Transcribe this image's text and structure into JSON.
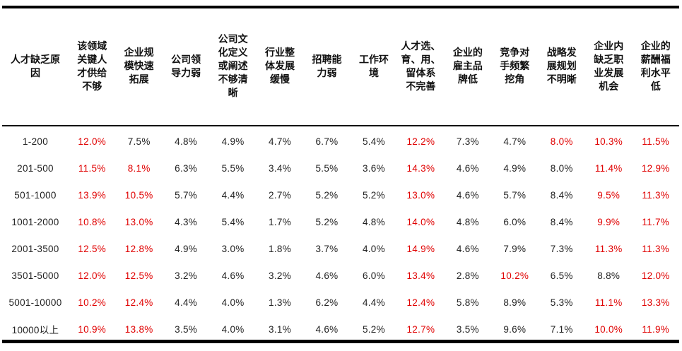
{
  "chart_data": {
    "type": "table",
    "highlight_color": "#e00000",
    "columns": [
      "人才缺乏原\n因",
      "该领域\n关键人\n才供给\n不够",
      "企业规\n模快速\n拓展",
      "公司领\n导力弱",
      "公司文\n化定义\n或阐述\n不够清\n晰",
      "行业整\n体发展\n缓慢",
      "招聘能\n力弱",
      "工作环\n境",
      "人才选、\n育、用、\n留体系\n不完善",
      "企业的\n雇主品\n牌低",
      "竞争对\n手频繁\n挖角",
      "战略发\n展规划\n不明晰",
      "企业内\n缺乏职\n业发展\n机会",
      "企业的\n薪酬福\n利水平\n低"
    ],
    "rows": [
      {
        "label": "1-200",
        "cells": [
          {
            "v": "12.0%",
            "hl": true
          },
          {
            "v": "7.5%"
          },
          {
            "v": "4.8%"
          },
          {
            "v": "4.9%"
          },
          {
            "v": "4.7%"
          },
          {
            "v": "6.7%"
          },
          {
            "v": "5.4%"
          },
          {
            "v": "12.2%",
            "hl": true
          },
          {
            "v": "7.3%"
          },
          {
            "v": "4.7%"
          },
          {
            "v": "8.0%",
            "hl": true
          },
          {
            "v": "10.3%",
            "hl": true
          },
          {
            "v": "11.5%",
            "hl": true
          }
        ]
      },
      {
        "label": "201-500",
        "cells": [
          {
            "v": "11.5%",
            "hl": true
          },
          {
            "v": "8.1%",
            "hl": true
          },
          {
            "v": "6.3%"
          },
          {
            "v": "5.5%"
          },
          {
            "v": "3.4%"
          },
          {
            "v": "5.5%"
          },
          {
            "v": "3.6%"
          },
          {
            "v": "14.3%",
            "hl": true
          },
          {
            "v": "4.6%"
          },
          {
            "v": "4.9%"
          },
          {
            "v": "8.0%"
          },
          {
            "v": "11.4%",
            "hl": true
          },
          {
            "v": "12.9%",
            "hl": true
          }
        ]
      },
      {
        "label": "501-1000",
        "cells": [
          {
            "v": "13.9%",
            "hl": true
          },
          {
            "v": "10.5%",
            "hl": true
          },
          {
            "v": "5.7%"
          },
          {
            "v": "4.4%"
          },
          {
            "v": "2.7%"
          },
          {
            "v": "5.2%"
          },
          {
            "v": "5.2%"
          },
          {
            "v": "13.0%",
            "hl": true
          },
          {
            "v": "4.6%"
          },
          {
            "v": "5.7%"
          },
          {
            "v": "8.4%"
          },
          {
            "v": "9.5%",
            "hl": true
          },
          {
            "v": "11.3%",
            "hl": true
          }
        ]
      },
      {
        "label": "1001-2000",
        "cells": [
          {
            "v": "10.8%",
            "hl": true
          },
          {
            "v": "13.0%",
            "hl": true
          },
          {
            "v": "4.3%"
          },
          {
            "v": "5.4%"
          },
          {
            "v": "1.7%"
          },
          {
            "v": "5.2%"
          },
          {
            "v": "4.8%"
          },
          {
            "v": "14.0%",
            "hl": true
          },
          {
            "v": "4.8%"
          },
          {
            "v": "6.0%"
          },
          {
            "v": "8.4%"
          },
          {
            "v": "9.9%",
            "hl": true
          },
          {
            "v": "11.7%",
            "hl": true
          }
        ]
      },
      {
        "label": "2001-3500",
        "cells": [
          {
            "v": "12.5%",
            "hl": true
          },
          {
            "v": "12.8%",
            "hl": true
          },
          {
            "v": "4.9%"
          },
          {
            "v": "3.0%"
          },
          {
            "v": "1.8%"
          },
          {
            "v": "3.7%"
          },
          {
            "v": "4.0%"
          },
          {
            "v": "14.9%",
            "hl": true
          },
          {
            "v": "4.6%"
          },
          {
            "v": "7.9%"
          },
          {
            "v": "7.3%"
          },
          {
            "v": "11.3%",
            "hl": true
          },
          {
            "v": "11.3%",
            "hl": true
          }
        ]
      },
      {
        "label": "3501-5000",
        "cells": [
          {
            "v": "12.0%",
            "hl": true
          },
          {
            "v": "12.5%",
            "hl": true
          },
          {
            "v": "3.2%"
          },
          {
            "v": "4.6%"
          },
          {
            "v": "3.2%"
          },
          {
            "v": "4.6%"
          },
          {
            "v": "6.0%"
          },
          {
            "v": "13.4%",
            "hl": true
          },
          {
            "v": "2.8%"
          },
          {
            "v": "10.2%",
            "hl": true
          },
          {
            "v": "6.5%"
          },
          {
            "v": "8.8%"
          },
          {
            "v": "12.0%",
            "hl": true
          }
        ]
      },
      {
        "label": "5001-10000",
        "cells": [
          {
            "v": "10.2%",
            "hl": true
          },
          {
            "v": "12.4%",
            "hl": true
          },
          {
            "v": "4.4%"
          },
          {
            "v": "4.0%"
          },
          {
            "v": "1.3%"
          },
          {
            "v": "6.2%"
          },
          {
            "v": "4.4%"
          },
          {
            "v": "12.4%",
            "hl": true
          },
          {
            "v": "5.8%"
          },
          {
            "v": "8.9%"
          },
          {
            "v": "5.3%"
          },
          {
            "v": "11.1%",
            "hl": true
          },
          {
            "v": "13.3%",
            "hl": true
          }
        ]
      },
      {
        "label": "10000以上",
        "cells": [
          {
            "v": "10.9%",
            "hl": true
          },
          {
            "v": "13.8%",
            "hl": true
          },
          {
            "v": "3.5%"
          },
          {
            "v": "4.0%"
          },
          {
            "v": "3.1%"
          },
          {
            "v": "4.6%"
          },
          {
            "v": "5.2%"
          },
          {
            "v": "12.7%",
            "hl": true
          },
          {
            "v": "3.5%"
          },
          {
            "v": "9.6%"
          },
          {
            "v": "7.1%"
          },
          {
            "v": "10.0%",
            "hl": true
          },
          {
            "v": "11.9%",
            "hl": true
          }
        ]
      }
    ]
  }
}
